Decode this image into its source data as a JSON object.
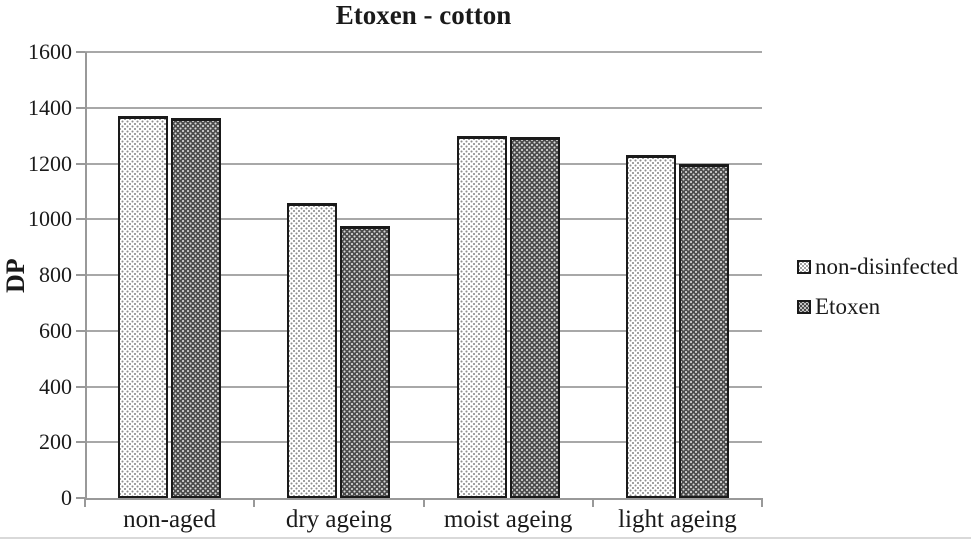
{
  "chart_data": {
    "type": "bar",
    "title": "Etoxen - cotton",
    "ylabel": "DP",
    "xlabel": "",
    "categories": [
      "non-aged",
      "dry ageing",
      "moist ageing",
      "light ageing"
    ],
    "series": [
      {
        "name": "non-disinfected",
        "pattern": "light-dots",
        "values": [
          1370,
          1060,
          1300,
          1230
        ]
      },
      {
        "name": "Etoxen",
        "pattern": "dark-dots",
        "values": [
          1365,
          975,
          1295,
          1200
        ]
      }
    ],
    "ylim": [
      0,
      1600
    ],
    "y_ticks": [
      0,
      200,
      400,
      600,
      800,
      1000,
      1200,
      1400,
      1600
    ],
    "grid": "horizontal",
    "legend_position": "right",
    "colors": {
      "light_bar_bg": "#ffffff",
      "light_bar_dot": "#8f8f8f",
      "dark_bar_bg": "#4d4d4d",
      "dark_bar_dot": "#d9d9d9",
      "bar_border": "#1a1a1a",
      "gridline": "#a8a8a8",
      "axis": "#999999",
      "text": "#1a1a1a"
    }
  }
}
